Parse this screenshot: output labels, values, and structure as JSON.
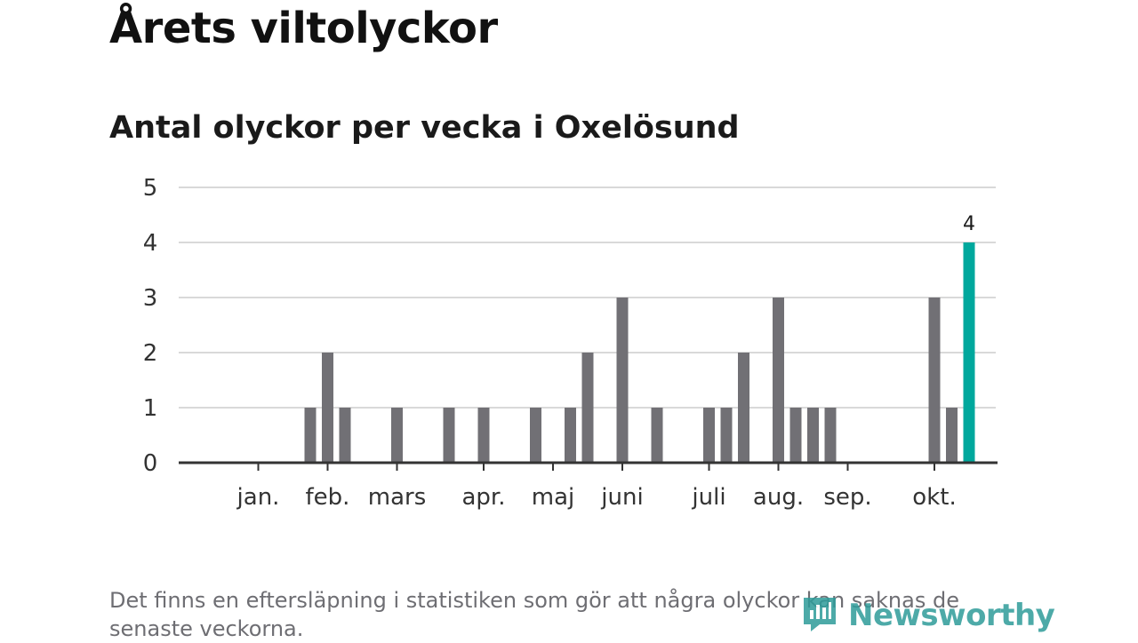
{
  "title": "Årets viltolyckor",
  "subtitle": "Antal olyckor per vecka i Oxelösund",
  "footnote": "Det finns en eftersläpning i statistiken som gör att några olyckor kan saknas de senaste veckorna.",
  "brand": {
    "name": "Newsworthy",
    "icon": "newsworthy-logo-icon",
    "color": "#2e9c9a"
  },
  "colors": {
    "bar": "#717075",
    "highlight": "#00a89d",
    "grid": "#d9d9d9",
    "axis": "#333333"
  },
  "chart_data": {
    "type": "bar",
    "title": "Antal olyckor per vecka i Oxelösund",
    "xlabel": "",
    "ylabel": "",
    "ylim": [
      0,
      5
    ],
    "yticks": [
      0,
      1,
      2,
      3,
      4,
      5
    ],
    "grid": true,
    "weeks": [
      1,
      2,
      3,
      4,
      5,
      6,
      7,
      8,
      9,
      10,
      11,
      12,
      13,
      14,
      15,
      16,
      17,
      18,
      19,
      20,
      21,
      22,
      23,
      24,
      25,
      26,
      27,
      28,
      29,
      30,
      31,
      32,
      33,
      34,
      35,
      36,
      37,
      38,
      39,
      40,
      41,
      42,
      43,
      44
    ],
    "values": [
      0,
      0,
      0,
      0,
      0,
      1,
      2,
      1,
      0,
      0,
      1,
      0,
      0,
      1,
      0,
      1,
      0,
      0,
      1,
      0,
      1,
      2,
      0,
      3,
      0,
      1,
      0,
      0,
      1,
      1,
      2,
      0,
      3,
      1,
      1,
      1,
      0,
      0,
      0,
      0,
      0,
      3,
      1,
      4
    ],
    "highlight_index": 43,
    "labeled_points": [
      {
        "week": 44,
        "label": "4"
      }
    ],
    "month_labels": [
      {
        "label": "jan.",
        "week": 3
      },
      {
        "label": "feb.",
        "week": 7
      },
      {
        "label": "mars",
        "week": 11
      },
      {
        "label": "apr.",
        "week": 16
      },
      {
        "label": "maj",
        "week": 20
      },
      {
        "label": "juni",
        "week": 24
      },
      {
        "label": "juli",
        "week": 29
      },
      {
        "label": "aug.",
        "week": 33
      },
      {
        "label": "sep.",
        "week": 37
      },
      {
        "label": "okt.",
        "week": 42
      }
    ]
  }
}
